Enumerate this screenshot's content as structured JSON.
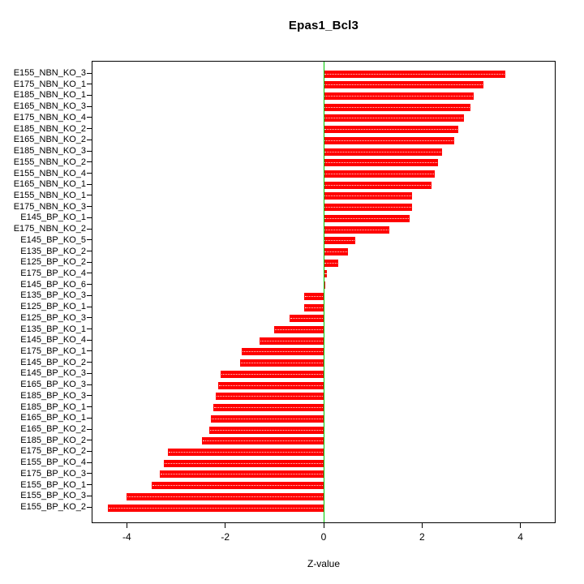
{
  "title": "Epas1_Bcl3",
  "chart_data": {
    "type": "bar",
    "orientation": "horizontal",
    "title": "Epas1_Bcl3",
    "xlabel": "Z-value",
    "ylabel": "",
    "xlim": [
      -4.7,
      4.7
    ],
    "xticks": [
      -4,
      -2,
      0,
      2,
      4
    ],
    "grid": false,
    "legend": "none",
    "bar_color": "#FF0000",
    "zero_line_color": "#00C800",
    "categories": [
      "E155_NBN_KO_3",
      "E175_NBN_KO_1",
      "E185_NBN_KO_1",
      "E165_NBN_KO_3",
      "E175_NBN_KO_4",
      "E185_NBN_KO_2",
      "E165_NBN_KO_2",
      "E185_NBN_KO_3",
      "E155_NBN_KO_2",
      "E155_NBN_KO_4",
      "E165_NBN_KO_1",
      "E155_NBN_KO_1",
      "E175_NBN_KO_3",
      "E145_BP_KO_1",
      "E175_NBN_KO_2",
      "E145_BP_KO_5",
      "E135_BP_KO_2",
      "E125_BP_KO_2",
      "E175_BP_KO_4",
      "E145_BP_KO_6",
      "E135_BP_KO_3",
      "E125_BP_KO_1",
      "E125_BP_KO_3",
      "E135_BP_KO_1",
      "E145_BP_KO_4",
      "E175_BP_KO_1",
      "E145_BP_KO_2",
      "E145_BP_KO_3",
      "E165_BP_KO_3",
      "E185_BP_KO_3",
      "E185_BP_KO_1",
      "E165_BP_KO_1",
      "E165_BP_KO_2",
      "E185_BP_KO_2",
      "E175_BP_KO_2",
      "E155_BP_KO_4",
      "E175_BP_KO_3",
      "E155_BP_KO_1",
      "E155_BP_KO_3",
      "E155_BP_KO_2"
    ],
    "values": [
      3.7,
      3.25,
      3.05,
      2.98,
      2.85,
      2.74,
      2.66,
      2.4,
      2.32,
      2.26,
      2.2,
      1.8,
      1.8,
      1.75,
      1.34,
      0.64,
      0.5,
      0.3,
      0.07,
      0.03,
      -0.4,
      -0.4,
      -0.7,
      -1.0,
      -1.3,
      -1.67,
      -1.7,
      -2.1,
      -2.15,
      -2.2,
      -2.25,
      -2.3,
      -2.32,
      -2.47,
      -3.16,
      -3.25,
      -3.33,
      -3.5,
      -4.0,
      -4.38
    ]
  }
}
